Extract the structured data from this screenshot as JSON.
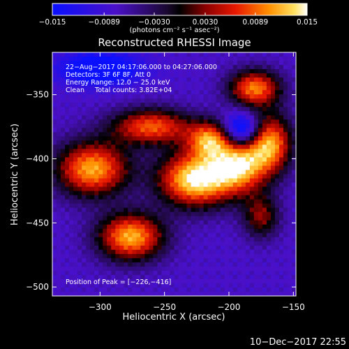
{
  "chart_data": {
    "type": "heatmap",
    "title": "Reconstructed RHESSI Image",
    "xlabel": "Heliocentric X (arcsec)",
    "ylabel": "Heliocentric Y (arcsec)",
    "xlim": [
      -337,
      -148
    ],
    "ylim": [
      -507,
      -317
    ],
    "xticks": [
      -300,
      -250,
      -200,
      -150
    ],
    "yticks": [
      -350,
      -400,
      -450,
      -500
    ],
    "xtick_labels": [
      "−300",
      "−250",
      "−200",
      "−150"
    ],
    "ytick_labels": [
      "−350",
      "−400",
      "−450",
      "−500"
    ],
    "colorbar": {
      "range": [
        -0.015,
        0.015
      ],
      "ticks": [
        -0.015,
        -0.0089,
        -0.003,
        0.003,
        0.0089,
        0.015
      ],
      "tick_labels": [
        "−0.015",
        "−0.0089",
        "−0.0030",
        "0.0030",
        "0.0089",
        "0.015"
      ],
      "units_label": "(photons cm⁻² s⁻¹ asec⁻²)",
      "colormap": "blue-purple-black-red-orange-yellow-white"
    },
    "annotations": [
      "22−Aug−2017 04:17:06.000 to 04:27:06.000",
      "Detectors: 3F 6F 8F, Att 0",
      "Energy Range: 12.0 − 25.0 keV",
      "Clean     Total counts: 3.82E+04"
    ],
    "peak_label": "Position of Peak = [−226,−416]",
    "peak": [
      -226,
      -416
    ],
    "background_level": -0.0075,
    "sources": [
      {
        "x": -226,
        "y": -416,
        "value": 0.015,
        "sigma_x": 20,
        "sigma_y": 15
      },
      {
        "x": -276,
        "y": -461,
        "value": 0.0118,
        "sigma_x": 18,
        "sigma_y": 13
      },
      {
        "x": -306,
        "y": -408,
        "value": 0.0115,
        "sigma_x": 20,
        "sigma_y": 15
      },
      {
        "x": -192,
        "y": -405,
        "value": 0.0108,
        "sigma_x": 15,
        "sigma_y": 15
      },
      {
        "x": -180,
        "y": -345,
        "value": 0.0098,
        "sigma_x": 14,
        "sigma_y": 10
      },
      {
        "x": -168,
        "y": -388,
        "value": 0.0105,
        "sigma_x": 12,
        "sigma_y": 16
      },
      {
        "x": -260,
        "y": -375,
        "value": 0.0085,
        "sigma_x": 22,
        "sigma_y": 10
      },
      {
        "x": -215,
        "y": -385,
        "value": 0.008,
        "sigma_x": 12,
        "sigma_y": 10
      },
      {
        "x": -175,
        "y": -445,
        "value": 0.003,
        "sigma_x": 10,
        "sigma_y": 12
      },
      {
        "x": -190,
        "y": -378,
        "value": -0.014,
        "sigma_x": 10,
        "sigma_y": 9
      },
      {
        "x": -300,
        "y": -330,
        "value": -0.012,
        "sigma_x": 22,
        "sigma_y": 9
      }
    ]
  },
  "footer": "10−Dec−2017 22:55"
}
